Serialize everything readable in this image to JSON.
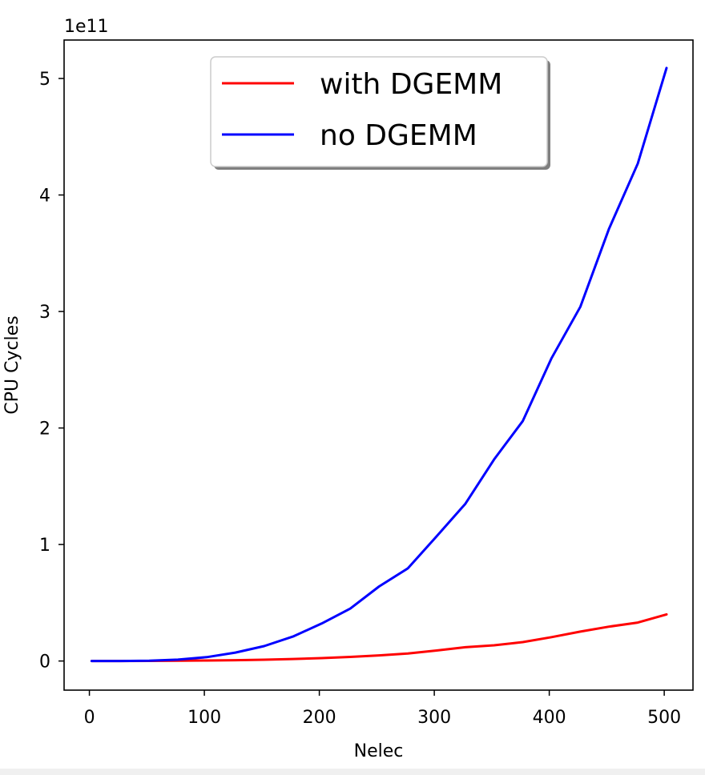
{
  "chart_data": {
    "type": "line",
    "xlabel": "Nelec",
    "ylabel": "CPU Cycles",
    "y_scale_label": "1e11",
    "xlim": [
      -22,
      525
    ],
    "ylim": [
      -0.25,
      5.33
    ],
    "xticks": [
      0,
      100,
      200,
      300,
      400,
      500
    ],
    "yticks": [
      0,
      1,
      2,
      3,
      4,
      5
    ],
    "legend_position": "upper center",
    "series": [
      {
        "name": "with DGEMM",
        "color": "#ff0000",
        "x": [
          2,
          27,
          52,
          77,
          102,
          127,
          152,
          177,
          202,
          227,
          252,
          277,
          302,
          327,
          352,
          377,
          402,
          427,
          452,
          477,
          502
        ],
        "y": [
          0,
          0,
          0.001,
          0.002,
          0.004,
          0.007,
          0.011,
          0.017,
          0.025,
          0.035,
          0.048,
          0.064,
          0.09,
          0.118,
          0.135,
          0.162,
          0.205,
          0.252,
          0.295,
          0.33,
          0.4
        ]
      },
      {
        "name": "no DGEMM",
        "color": "#0000ff",
        "x": [
          2,
          27,
          52,
          77,
          102,
          127,
          152,
          177,
          202,
          227,
          252,
          277,
          302,
          327,
          352,
          377,
          402,
          427,
          452,
          477,
          502
        ],
        "y": [
          0,
          0,
          0.003,
          0.012,
          0.033,
          0.072,
          0.128,
          0.21,
          0.322,
          0.45,
          0.64,
          0.795,
          1.07,
          1.35,
          1.73,
          2.06,
          2.6,
          3.04,
          3.71,
          4.27,
          5.09
        ]
      }
    ]
  }
}
